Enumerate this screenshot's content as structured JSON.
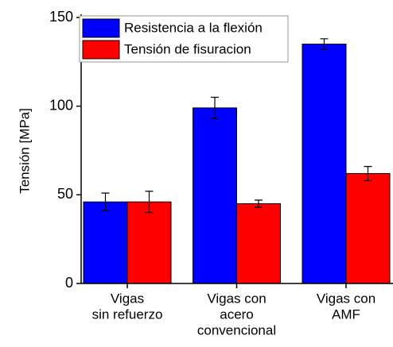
{
  "chart_data": {
    "type": "bar",
    "y_label": "Tensión [MPa]",
    "categories": [
      [
        "Vigas",
        "sin refuerzo"
      ],
      [
        "Vigas con",
        "acero",
        "convencional"
      ],
      [
        "Vigas con",
        "AMF"
      ]
    ],
    "series": [
      {
        "name": "Resistencia a la flexión",
        "color": "#0000ff",
        "values": [
          46,
          99,
          135
        ],
        "errors": [
          5,
          6,
          3
        ]
      },
      {
        "name": "Tensión de fisuracion",
        "color": "#ff0000",
        "values": [
          46,
          45,
          62
        ],
        "errors": [
          6,
          2,
          4
        ]
      }
    ],
    "ylim": [
      0,
      150
    ],
    "yticks": [
      0,
      50,
      100,
      150
    ],
    "legend": "upper left"
  }
}
